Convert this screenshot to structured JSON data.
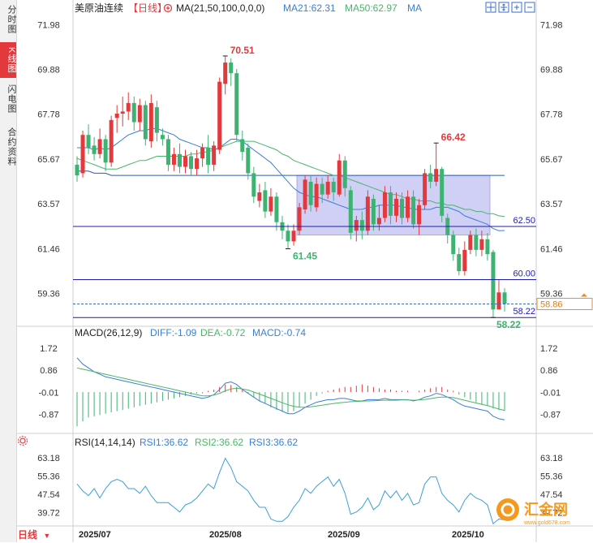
{
  "sidebar": {
    "tabs": [
      {
        "label": "分时图"
      },
      {
        "label": "K线图"
      },
      {
        "label": "闪电图"
      },
      {
        "label": "合约资料"
      }
    ]
  },
  "header": {
    "symbol": "美原油连续",
    "period": "【日线】",
    "ma_params": "MA(21,50,100,0,0,0)",
    "ma21": "MA21:62.31",
    "ma50": "MA50:62.97",
    "ma": "MA"
  },
  "macd_header": {
    "params": "MACD(26,12,9)",
    "diff": "DIFF:-1.09",
    "dea": "DEA:-0.72",
    "macd": "MACD:-0.74"
  },
  "rsi_header": {
    "params": "RSI(14,14,14)",
    "rsi1": "RSI1:36.62",
    "rsi2": "RSI2:36.62",
    "rsi3": "RSI3:36.62"
  },
  "footer": {
    "period_button": "日线",
    "x_labels": [
      "2025/07",
      "2025/08",
      "2025/09",
      "2025/10"
    ]
  },
  "watermark": {
    "text": "汇金网",
    "url": "www.gold678.com"
  },
  "colors": {
    "up": "#e4393c",
    "down": "#3cb371",
    "ma21": "#3a7fd5",
    "ma50": "#4bb56a",
    "ma100": "#2a5fae",
    "hline": "#1c1cb0",
    "box": "#c8c8f4"
  },
  "chart_data": [
    {
      "type": "candlestick",
      "name": "price",
      "y_ticks": [
        "71.98",
        "69.88",
        "67.78",
        "65.67",
        "63.57",
        "61.46",
        "59.36"
      ],
      "ylim": [
        58.0,
        72.3
      ],
      "annotations": {
        "high": "70.51",
        "low1": "61.45",
        "high2": "66.42",
        "low2": "58.22"
      },
      "levels": [
        {
          "value": 62.5,
          "label": "62.50"
        },
        {
          "value": 60.0,
          "label": "60.00"
        },
        {
          "value": 58.22,
          "label": "58.22"
        }
      ],
      "current_price": {
        "value": 58.86,
        "label": "58.86"
      },
      "range_box": {
        "start_index": 39,
        "end_index": 72,
        "top": 64.9,
        "bottom": 62.1
      },
      "candles": [
        [
          65.4,
          64.9,
          65.8,
          64.6
        ],
        [
          65.0,
          66.8,
          67.0,
          64.8
        ],
        [
          66.8,
          66.2,
          67.3,
          65.9
        ],
        [
          66.3,
          65.9,
          66.7,
          65.6
        ],
        [
          65.9,
          66.6,
          67.1,
          65.7
        ],
        [
          66.6,
          65.5,
          66.8,
          65.1
        ],
        [
          65.5,
          67.5,
          67.7,
          65.3
        ],
        [
          67.6,
          67.8,
          68.2,
          66.9
        ],
        [
          67.8,
          67.9,
          68.6,
          67.2
        ],
        [
          67.9,
          68.3,
          68.8,
          67.5
        ],
        [
          68.3,
          67.4,
          68.6,
          67.0
        ],
        [
          67.4,
          68.2,
          68.5,
          67.0
        ],
        [
          68.2,
          66.6,
          68.4,
          66.3
        ],
        [
          66.5,
          68.3,
          68.7,
          66.2
        ],
        [
          68.1,
          66.9,
          68.4,
          66.5
        ],
        [
          66.8,
          66.6,
          67.1,
          66.3
        ],
        [
          66.6,
          65.4,
          66.8,
          65.1
        ],
        [
          65.4,
          65.9,
          66.2,
          65.1
        ],
        [
          65.9,
          65.3,
          66.4,
          65.0
        ],
        [
          65.3,
          65.8,
          66.1,
          65.0
        ],
        [
          65.8,
          65.2,
          66.0,
          64.9
        ],
        [
          65.2,
          65.7,
          66.1,
          64.9
        ],
        [
          65.7,
          66.2,
          66.4,
          65.3
        ],
        [
          66.2,
          65.4,
          66.8,
          65.0
        ],
        [
          65.4,
          66.3,
          66.5,
          65.1
        ],
        [
          66.1,
          69.3,
          69.5,
          65.9
        ],
        [
          69.2,
          70.2,
          70.5,
          68.7
        ],
        [
          70.2,
          69.7,
          70.4,
          69.1
        ],
        [
          69.7,
          66.8,
          69.9,
          66.5
        ],
        [
          66.6,
          66.0,
          67.0,
          65.6
        ],
        [
          66.2,
          65.0,
          66.4,
          64.7
        ],
        [
          65.0,
          63.9,
          65.3,
          63.6
        ],
        [
          63.7,
          64.1,
          64.5,
          63.4
        ],
        [
          64.2,
          63.2,
          64.6,
          62.9
        ],
        [
          63.2,
          63.9,
          64.3,
          63.0
        ],
        [
          63.9,
          62.7,
          64.1,
          62.3
        ],
        [
          62.7,
          62.3,
          63.0,
          61.9
        ],
        [
          62.3,
          61.8,
          62.6,
          61.45
        ],
        [
          61.8,
          62.3,
          62.6,
          61.6
        ],
        [
          62.3,
          63.4,
          63.6,
          62.1
        ],
        [
          63.3,
          64.7,
          64.9,
          63.1
        ],
        [
          64.6,
          63.5,
          64.9,
          63.2
        ],
        [
          63.4,
          64.5,
          64.8,
          63.2
        ],
        [
          64.5,
          64.0,
          64.8,
          63.6
        ],
        [
          64.0,
          64.6,
          64.9,
          63.8
        ],
        [
          64.6,
          64.1,
          64.8,
          63.7
        ],
        [
          64.0,
          65.6,
          65.9,
          63.9
        ],
        [
          65.6,
          64.3,
          65.8,
          63.9
        ],
        [
          64.2,
          62.2,
          64.4,
          61.9
        ],
        [
          62.3,
          62.8,
          63.0,
          61.8
        ],
        [
          62.8,
          62.3,
          63.2,
          61.9
        ],
        [
          62.3,
          63.9,
          64.2,
          62.1
        ],
        [
          63.8,
          62.6,
          64.0,
          62.3
        ],
        [
          62.6,
          62.9,
          63.5,
          62.3
        ],
        [
          62.9,
          64.1,
          64.4,
          62.7
        ],
        [
          64.1,
          63.0,
          64.4,
          62.6
        ],
        [
          63.0,
          63.8,
          64.1,
          62.7
        ],
        [
          63.8,
          62.9,
          64.1,
          62.6
        ],
        [
          62.9,
          63.9,
          64.2,
          62.7
        ],
        [
          63.9,
          62.6,
          64.2,
          62.4
        ],
        [
          62.6,
          63.5,
          63.8,
          62.1
        ],
        [
          63.5,
          65.0,
          65.2,
          63.3
        ],
        [
          65.0,
          64.6,
          65.4,
          64.3
        ],
        [
          64.6,
          65.2,
          66.42,
          64.4
        ],
        [
          65.2,
          63.0,
          65.3,
          62.7
        ],
        [
          62.9,
          62.1,
          63.1,
          61.7
        ],
        [
          62.1,
          61.2,
          62.3,
          60.9
        ],
        [
          61.2,
          60.4,
          61.5,
          60.2
        ],
        [
          60.4,
          61.4,
          61.8,
          60.2
        ],
        [
          61.4,
          62.1,
          62.3,
          61.2
        ],
        [
          62.1,
          61.4,
          62.4,
          61.1
        ],
        [
          61.4,
          61.9,
          62.3,
          61.1
        ],
        [
          61.9,
          61.2,
          62.2,
          60.9
        ],
        [
          61.3,
          58.6,
          61.4,
          58.22
        ],
        [
          58.6,
          59.4,
          60.0,
          58.9
        ],
        [
          59.4,
          58.86,
          59.6,
          58.5
        ]
      ],
      "ma21": [
        66.2,
        66.2,
        66.2,
        66.1,
        66.2,
        66.1,
        66.2,
        66.4,
        66.6,
        66.8,
        66.9,
        67.0,
        67.0,
        67.1,
        67.1,
        67.0,
        66.9,
        66.8,
        66.6,
        66.5,
        66.4,
        66.3,
        66.2,
        66.2,
        66.1,
        66.2,
        66.4,
        66.6,
        66.6,
        66.5,
        66.3,
        66.1,
        65.9,
        65.7,
        65.5,
        65.2,
        64.9,
        64.6,
        64.3,
        64.1,
        64.0,
        63.9,
        63.9,
        63.8,
        63.7,
        63.6,
        63.5,
        63.4,
        63.3,
        63.3,
        63.3,
        63.4,
        63.4,
        63.5,
        63.5,
        63.5,
        63.5,
        63.4,
        63.4,
        63.3,
        63.3,
        63.3,
        63.3,
        63.4,
        63.4,
        63.4,
        63.3,
        63.2,
        63.0,
        62.9,
        62.8,
        62.7,
        62.6,
        62.4,
        62.3,
        62.31
      ],
      "ma50": [
        65.7,
        65.6,
        65.5,
        65.4,
        65.3,
        65.2,
        65.2,
        65.2,
        65.3,
        65.4,
        65.5,
        65.6,
        65.6,
        65.7,
        65.8,
        65.8,
        65.8,
        65.8,
        65.8,
        65.8,
        65.9,
        65.9,
        66.0,
        66.0,
        66.1,
        66.2,
        66.3,
        66.4,
        66.5,
        66.5,
        66.5,
        66.5,
        66.4,
        66.3,
        66.2,
        66.1,
        65.9,
        65.8,
        65.6,
        65.5,
        65.4,
        65.3,
        65.2,
        65.1,
        65.0,
        64.9,
        64.9,
        64.8,
        64.7,
        64.6,
        64.5,
        64.4,
        64.3,
        64.2,
        64.1,
        64.0,
        64.0,
        63.9,
        63.8,
        63.8,
        63.7,
        63.7,
        63.7,
        63.6,
        63.6,
        63.5,
        63.5,
        63.4,
        63.3,
        63.3,
        63.2,
        63.2,
        63.1,
        63.1,
        63.0,
        62.97
      ],
      "ma100": [
        65.1,
        65.1,
        65.1,
        65.0,
        65.0,
        65.0,
        64.9,
        64.9,
        64.9,
        64.9,
        64.9,
        64.9,
        64.9,
        64.9,
        64.9,
        64.9,
        64.9,
        64.9,
        64.9,
        64.9,
        64.9,
        64.9,
        64.9,
        64.9,
        64.9,
        64.9,
        64.9,
        64.9,
        64.9,
        64.9,
        64.9,
        64.9,
        64.9,
        64.9,
        64.9,
        64.9,
        64.9,
        64.9,
        64.9,
        64.9,
        64.9,
        64.9,
        64.9,
        64.9,
        64.9,
        64.9,
        64.9,
        64.9,
        64.9,
        64.9,
        64.9,
        64.9,
        64.9,
        64.9,
        64.9,
        64.9,
        64.9,
        64.9,
        64.9,
        64.9,
        64.9,
        64.9,
        64.9,
        64.9,
        64.9,
        64.9,
        64.9,
        64.9,
        64.9,
        64.9,
        64.9,
        64.9,
        64.9,
        64.9,
        64.9,
        64.9
      ]
    },
    {
      "type": "macd",
      "name": "macd",
      "y_ticks": [
        "1.72",
        "0.86",
        "-0.01",
        "-0.87"
      ],
      "ylim": [
        -1.5,
        1.95
      ],
      "diff": [
        1.35,
        1.1,
        0.95,
        0.8,
        0.7,
        0.6,
        0.55,
        0.5,
        0.45,
        0.4,
        0.35,
        0.3,
        0.25,
        0.2,
        0.15,
        0.1,
        0.05,
        0.0,
        -0.05,
        -0.1,
        -0.15,
        -0.2,
        -0.25,
        -0.2,
        -0.1,
        0.1,
        0.35,
        0.4,
        0.3,
        0.1,
        -0.05,
        -0.2,
        -0.35,
        -0.45,
        -0.55,
        -0.65,
        -0.75,
        -0.85,
        -0.85,
        -0.75,
        -0.6,
        -0.5,
        -0.4,
        -0.35,
        -0.3,
        -0.3,
        -0.25,
        -0.25,
        -0.3,
        -0.35,
        -0.35,
        -0.3,
        -0.3,
        -0.3,
        -0.25,
        -0.3,
        -0.3,
        -0.3,
        -0.3,
        -0.35,
        -0.3,
        -0.2,
        -0.15,
        -0.05,
        -0.1,
        -0.2,
        -0.3,
        -0.45,
        -0.55,
        -0.6,
        -0.65,
        -0.7,
        -0.75,
        -0.95,
        -1.05,
        -1.09
      ],
      "dea": [
        0.95,
        0.9,
        0.85,
        0.8,
        0.75,
        0.7,
        0.65,
        0.6,
        0.55,
        0.5,
        0.45,
        0.4,
        0.35,
        0.3,
        0.25,
        0.2,
        0.15,
        0.1,
        0.05,
        0.0,
        -0.05,
        -0.1,
        -0.15,
        -0.15,
        -0.12,
        -0.05,
        0.05,
        0.12,
        0.15,
        0.12,
        0.08,
        0.0,
        -0.08,
        -0.16,
        -0.25,
        -0.33,
        -0.42,
        -0.5,
        -0.56,
        -0.6,
        -0.6,
        -0.58,
        -0.55,
        -0.52,
        -0.48,
        -0.45,
        -0.42,
        -0.4,
        -0.38,
        -0.37,
        -0.36,
        -0.35,
        -0.34,
        -0.33,
        -0.32,
        -0.32,
        -0.32,
        -0.31,
        -0.31,
        -0.32,
        -0.31,
        -0.29,
        -0.26,
        -0.22,
        -0.2,
        -0.2,
        -0.22,
        -0.27,
        -0.32,
        -0.38,
        -0.43,
        -0.48,
        -0.53,
        -0.6,
        -0.67,
        -0.72
      ],
      "hist": [
        -1.35,
        -1.15,
        -1.0,
        -0.95,
        -0.9,
        -0.85,
        -0.8,
        -0.75,
        -0.7,
        -0.65,
        -0.6,
        -0.55,
        -0.5,
        -0.45,
        -0.4,
        -0.35,
        -0.3,
        -0.25,
        -0.2,
        -0.15,
        -0.1,
        -0.05,
        -0.05,
        0.05,
        0.1,
        0.2,
        0.3,
        0.28,
        0.2,
        0.1,
        -0.05,
        -0.2,
        -0.35,
        -0.45,
        -0.6,
        -0.7,
        -0.78,
        -0.82,
        -0.75,
        -0.6,
        -0.45,
        -0.3,
        -0.15,
        -0.05,
        0.05,
        0.1,
        0.15,
        0.2,
        0.2,
        0.25,
        0.3,
        0.25,
        0.2,
        0.15,
        0.1,
        0.1,
        0.05,
        0.05,
        0.05,
        0.0,
        0.05,
        0.1,
        0.15,
        0.2,
        0.2,
        0.1,
        0.05,
        -0.1,
        -0.2,
        -0.3,
        -0.4,
        -0.5,
        -0.55,
        -0.65,
        -0.7,
        -0.74
      ]
    },
    {
      "type": "line",
      "name": "rsi",
      "y_ticks": [
        "63.18",
        "55.36",
        "47.54",
        "39.72"
      ],
      "ylim": [
        34,
        66
      ],
      "rsi": [
        52,
        49,
        47,
        50,
        46,
        50,
        53,
        54,
        53,
        50,
        50,
        48,
        51,
        47,
        44,
        44,
        44,
        42,
        40,
        43,
        44,
        46,
        49,
        52,
        50,
        57,
        63,
        59,
        53,
        51,
        49,
        45,
        42,
        42,
        37,
        36,
        36,
        38,
        42,
        45,
        50,
        48,
        51,
        53,
        55,
        51,
        54,
        48,
        39,
        40,
        42,
        46,
        41,
        43,
        49,
        46,
        49,
        45,
        48,
        43,
        44,
        52,
        55,
        55,
        48,
        45,
        43,
        40,
        45,
        48,
        46,
        45,
        43,
        35,
        37,
        36.62
      ]
    }
  ]
}
